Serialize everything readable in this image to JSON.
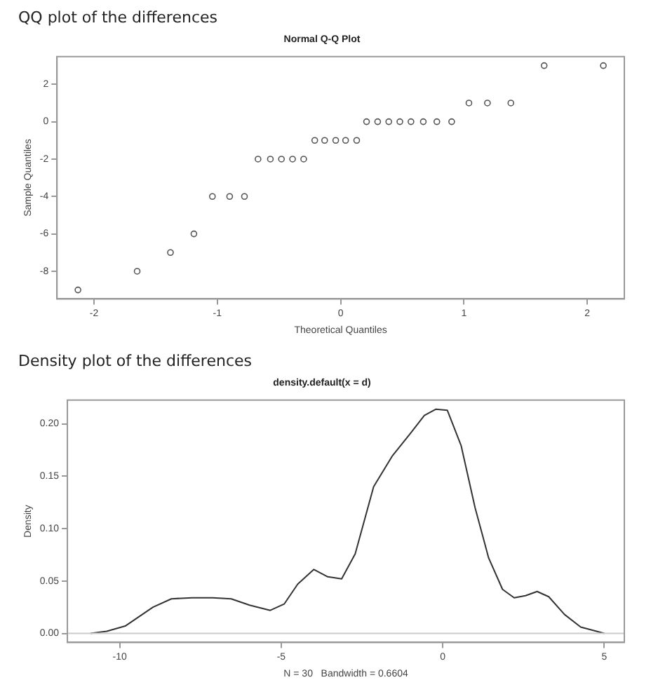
{
  "chart_data": [
    {
      "type": "scatter",
      "title": "QQ plot of the differences",
      "subtitle": "Normal Q-Q Plot",
      "xlabel": "Theoretical Quantiles",
      "ylabel": "Sample Quantiles",
      "x": [
        -2.13,
        -1.65,
        -1.38,
        -1.19,
        -1.04,
        -0.9,
        -0.78,
        -0.67,
        -0.57,
        -0.48,
        -0.39,
        -0.3,
        -0.21,
        -0.13,
        -0.04,
        0.04,
        0.13,
        0.21,
        0.3,
        0.39,
        0.48,
        0.57,
        0.67,
        0.78,
        0.9,
        1.04,
        1.19,
        1.38,
        1.65,
        2.13
      ],
      "series": [
        {
          "color": "#555555",
          "values": [
            -9,
            -8,
            -7,
            -6,
            -4,
            -4,
            -4,
            -2,
            -2,
            -2,
            -2,
            -2,
            -1,
            -1,
            -1,
            -1,
            -1,
            0,
            0,
            0,
            0,
            0,
            0,
            0,
            0,
            1,
            1,
            1,
            3,
            3
          ]
        }
      ],
      "xlim": [
        -2.3,
        2.3
      ],
      "xticks": [
        -2,
        -1,
        0,
        1,
        2
      ],
      "ylim": [
        -9.48,
        3.48
      ],
      "yticks": [
        -8,
        -6,
        -4,
        -2,
        0,
        2
      ],
      "grid": false,
      "legend": false,
      "marker": "circle"
    },
    {
      "type": "line",
      "title": "Density plot of the differences",
      "subtitle": "density.default(x = d)",
      "xlabel": "N = 30   Bandwidth = 0.6604",
      "ylabel": "Density",
      "x": [
        -10.9,
        -10.4,
        -9.83,
        -9.4,
        -8.97,
        -8.4,
        -7.76,
        -7.12,
        -6.55,
        -5.98,
        -5.34,
        -4.91,
        -4.49,
        -3.99,
        -3.56,
        -3.13,
        -2.71,
        -2.14,
        -1.57,
        -1.0,
        -0.57,
        -0.21,
        0.14,
        0.57,
        1.0,
        1.42,
        1.85,
        2.21,
        2.56,
        2.92,
        3.28,
        3.77,
        4.27,
        5.0
      ],
      "series": [
        {
          "color": "#333333",
          "values": [
            0.0,
            0.002,
            0.007,
            0.016,
            0.025,
            0.033,
            0.034,
            0.034,
            0.033,
            0.027,
            0.022,
            0.028,
            0.047,
            0.061,
            0.054,
            0.052,
            0.076,
            0.14,
            0.169,
            0.191,
            0.208,
            0.214,
            0.213,
            0.179,
            0.12,
            0.072,
            0.042,
            0.034,
            0.036,
            0.04,
            0.035,
            0.018,
            0.006,
            0.0
          ]
        }
      ],
      "xlim": [
        -11.62,
        5.62
      ],
      "xticks": [
        -10,
        -5,
        0,
        5
      ],
      "ylim": [
        -0.0086,
        0.2226
      ],
      "yticks": [
        {
          "value": 0,
          "label": "0.00"
        },
        {
          "value": 0.05,
          "label": "0.05"
        },
        {
          "value": 0.1,
          "label": "0.10"
        },
        {
          "value": 0.15,
          "label": "0.15"
        },
        {
          "value": 0.2,
          "label": "0.20"
        }
      ],
      "ref_lines": [
        {
          "axis": "y",
          "value": 0,
          "color": "#cccccc"
        }
      ],
      "grid": false,
      "legend": false,
      "marker": "none"
    }
  ]
}
